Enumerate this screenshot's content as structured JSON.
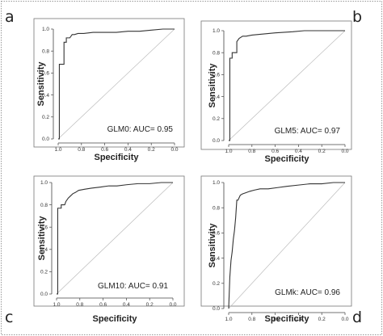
{
  "chart_data": [
    {
      "type": "line",
      "panel": "a",
      "xlabel": "Specificity",
      "ylabel": "Sensitivity",
      "xlim": [
        1.0,
        0.0
      ],
      "ylim": [
        0.0,
        1.0
      ],
      "x_ticks": [
        "1.0",
        "0.8",
        "0.6",
        "0.4",
        "0.2",
        "0.0"
      ],
      "y_ticks": [
        "0.0",
        "0.2",
        "0.4",
        "0.6",
        "0.8",
        "1.0"
      ],
      "annotation": "GLM0: AUC= 0.95",
      "grid": false,
      "series": [
        {
          "specificity": [
            1.0,
            0.99,
            0.99,
            0.95,
            0.95,
            0.93,
            0.93,
            0.9,
            0.88,
            0.86,
            0.83,
            0.78,
            0.7,
            0.6,
            0.5,
            0.4,
            0.3,
            0.2,
            0.1,
            0.0
          ],
          "sensitivity": [
            0.0,
            0.0,
            0.68,
            0.68,
            0.88,
            0.88,
            0.92,
            0.92,
            0.95,
            0.95,
            0.96,
            0.96,
            0.97,
            0.97,
            0.97,
            0.98,
            0.98,
            0.99,
            1.0,
            1.0
          ]
        },
        {
          "specificity": [
            1.0,
            0.0
          ],
          "sensitivity": [
            0.0,
            1.0
          ]
        }
      ]
    },
    {
      "type": "line",
      "panel": "b",
      "xlabel": "Specificity",
      "ylabel": "Sensitivity",
      "xlim": [
        1.0,
        0.0
      ],
      "ylim": [
        0.0,
        1.0
      ],
      "x_ticks": [
        "1.0",
        "0.8",
        "0.6",
        "0.4",
        "0.2",
        "0.0"
      ],
      "y_ticks": [
        "0.0",
        "0.2",
        "0.4",
        "0.6",
        "0.8",
        "1.0"
      ],
      "annotation": "GLM5: AUC= 0.97",
      "grid": false,
      "series": [
        {
          "specificity": [
            1.0,
            0.99,
            0.99,
            0.97,
            0.97,
            0.93,
            0.93,
            0.91,
            0.88,
            0.85,
            0.8,
            0.7,
            0.6,
            0.45,
            0.35,
            0.0
          ],
          "sensitivity": [
            0.0,
            0.0,
            0.75,
            0.75,
            0.8,
            0.8,
            0.9,
            0.93,
            0.95,
            0.95,
            0.96,
            0.97,
            0.98,
            0.99,
            1.0,
            1.0
          ]
        },
        {
          "specificity": [
            1.0,
            0.0
          ],
          "sensitivity": [
            0.0,
            1.0
          ]
        }
      ]
    },
    {
      "type": "line",
      "panel": "c",
      "xlabel": "Specificity",
      "ylabel": "Sensitivity",
      "xlim": [
        1.0,
        0.0
      ],
      "ylim": [
        0.0,
        1.0
      ],
      "x_ticks": [
        "1.0",
        "0.8",
        "0.6",
        "0.4",
        "0.2",
        "0.0"
      ],
      "y_ticks": [
        "0.0",
        "0.2",
        "0.4",
        "0.6",
        "0.8",
        "1.0"
      ],
      "annotation": "GLM10: AUC= 0.91",
      "grid": false,
      "series": [
        {
          "specificity": [
            1.0,
            0.99,
            0.99,
            0.96,
            0.96,
            0.93,
            0.92,
            0.9,
            0.88,
            0.86,
            0.84,
            0.81,
            0.76,
            0.7,
            0.62,
            0.55,
            0.48,
            0.4,
            0.3,
            0.2,
            0.1,
            0.0
          ],
          "sensitivity": [
            0.0,
            0.0,
            0.77,
            0.77,
            0.8,
            0.8,
            0.83,
            0.86,
            0.88,
            0.9,
            0.91,
            0.93,
            0.94,
            0.95,
            0.96,
            0.97,
            0.97,
            0.98,
            0.99,
            0.99,
            1.0,
            1.0
          ]
        },
        {
          "specificity": [
            1.0,
            0.0
          ],
          "sensitivity": [
            0.0,
            1.0
          ]
        }
      ]
    },
    {
      "type": "line",
      "panel": "d",
      "xlabel": "Specificity",
      "ylabel": "Sensitivity",
      "xlim": [
        1.0,
        0.0
      ],
      "ylim": [
        0.0,
        1.0
      ],
      "x_ticks": [
        "1.0",
        "0.8",
        "0.6",
        "0.4",
        "0.2",
        "0.0"
      ],
      "y_ticks": [
        "0.0",
        "0.2",
        "0.4",
        "0.6",
        "0.8",
        "1.0"
      ],
      "annotation": "GLMk: AUC= 0.96",
      "grid": false,
      "series": [
        {
          "specificity": [
            1.0,
            0.99,
            0.98,
            0.97,
            0.96,
            0.95,
            0.94,
            0.93,
            0.92,
            0.91,
            0.9,
            0.88,
            0.85,
            0.82,
            0.78,
            0.73,
            0.66,
            0.58,
            0.5,
            0.4,
            0.3,
            0.2,
            0.1,
            0.0
          ],
          "sensitivity": [
            0.0,
            0.25,
            0.38,
            0.45,
            0.55,
            0.62,
            0.72,
            0.86,
            0.86,
            0.88,
            0.9,
            0.91,
            0.92,
            0.93,
            0.94,
            0.95,
            0.95,
            0.96,
            0.97,
            0.98,
            0.99,
            0.99,
            1.0,
            1.0
          ]
        },
        {
          "specificity": [
            1.0,
            0.0
          ],
          "sensitivity": [
            0.0,
            1.0
          ]
        }
      ]
    }
  ],
  "colors": {
    "roc_line": "#333333",
    "diagonal": "#bbbbbb",
    "axis": "#444444",
    "frame": "#999999"
  }
}
